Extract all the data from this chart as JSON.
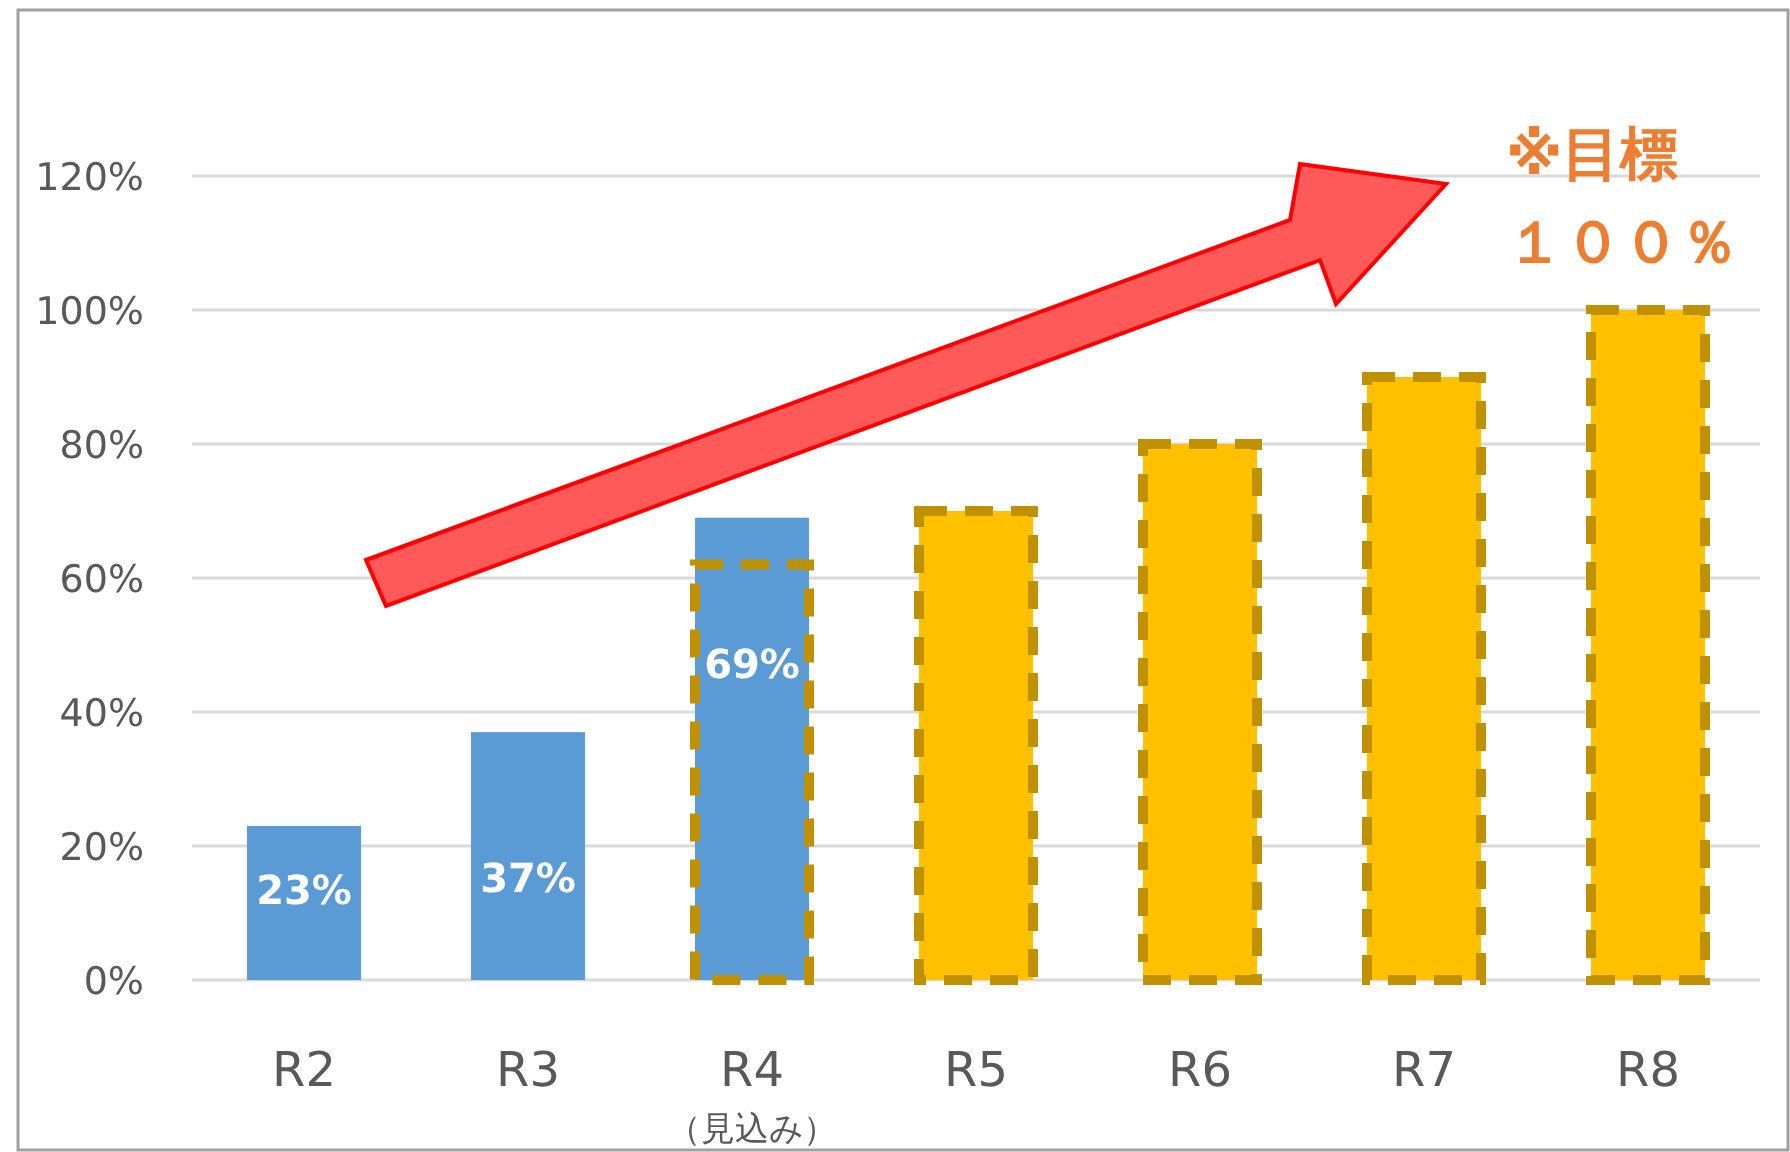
{
  "chart_data": {
    "type": "bar",
    "categories": [
      "R2",
      "R3",
      "R4\n（見込み）",
      "R5",
      "R6",
      "R7",
      "R8"
    ],
    "series": [
      {
        "color": "#5b9bd5",
        "values": [
          23,
          37,
          69,
          null,
          null,
          null,
          null
        ],
        "value_labels": [
          "23%",
          "37%",
          "69%",
          null,
          null,
          null,
          null
        ]
      },
      {
        "color": "#ffc000",
        "colors": [
          null,
          null,
          "#5b9bd5",
          "#ffc000",
          "#ffc000",
          "#ffc000",
          "#ffc000"
        ],
        "line_style": "dashed",
        "values": [
          null,
          null,
          62,
          70,
          80,
          90,
          100
        ]
      }
    ],
    "ylim": [
      0,
      120
    ],
    "yticks": [
      {
        "value": 0,
        "label": "0%"
      },
      {
        "value": 20,
        "label": "20%"
      },
      {
        "value": 40,
        "label": "40%"
      },
      {
        "value": 60,
        "label": "60%"
      },
      {
        "value": 80,
        "label": "80%"
      },
      {
        "value": 100,
        "label": "100%"
      },
      {
        "value": 120,
        "label": "120%"
      }
    ],
    "grid": "y",
    "annotations": [
      "※目標",
      "１００％"
    ]
  }
}
